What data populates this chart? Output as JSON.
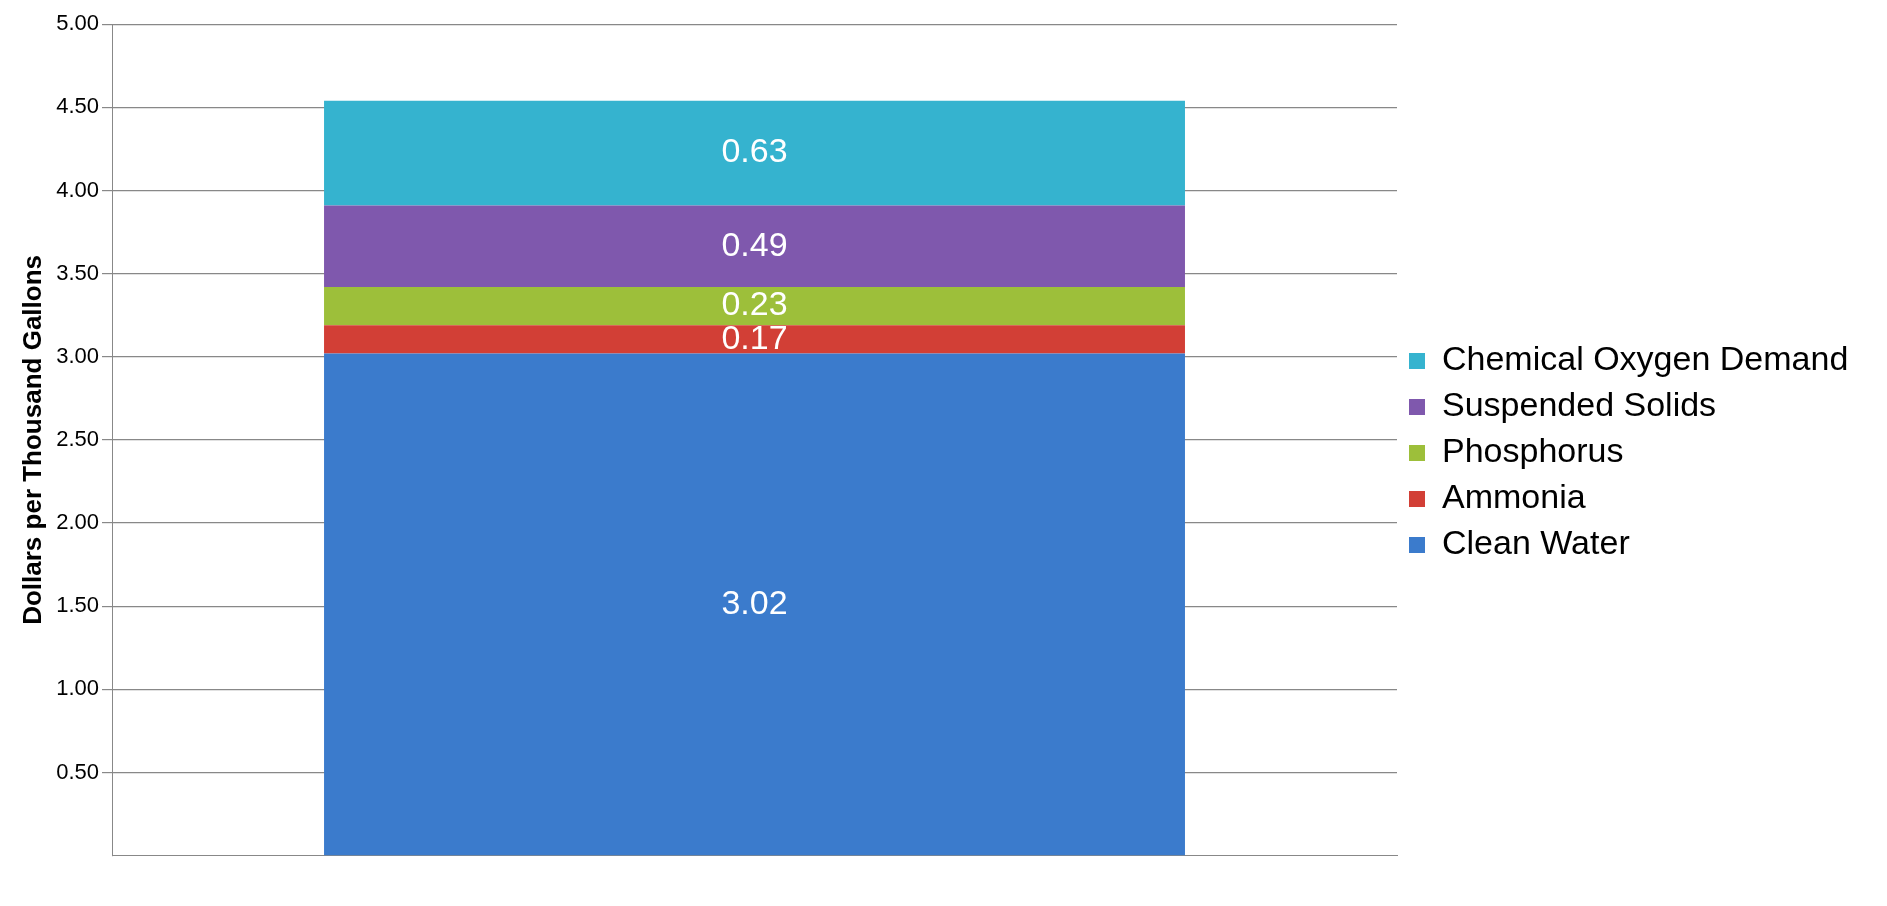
{
  "chart_data": {
    "type": "bar",
    "stacked": true,
    "ylabel": "Dollars per Thousand Gallons",
    "categories": [
      null
    ],
    "series": [
      {
        "name": "Clean Water",
        "color": "#3b7bcc",
        "values": [
          3.02
        ]
      },
      {
        "name": "Ammonia",
        "color": "#d23f36",
        "values": [
          0.17
        ]
      },
      {
        "name": "Phosphorus",
        "color": "#9dbf3a",
        "values": [
          0.23
        ]
      },
      {
        "name": "Suspended Solids",
        "color": "#7f58ad",
        "values": [
          0.49
        ]
      },
      {
        "name": "Chemical Oxygen Demand",
        "color": "#35b3cf",
        "values": [
          0.63
        ]
      }
    ],
    "ylim": [
      0,
      5
    ],
    "yticks": [
      {
        "value": 0.5,
        "label": "0.50"
      },
      {
        "value": 1,
        "label": "1.00"
      },
      {
        "value": 1.5,
        "label": "1.50"
      },
      {
        "value": 2,
        "label": "2.00"
      },
      {
        "value": 2.5,
        "label": "2.50"
      },
      {
        "value": 3,
        "label": "3.00"
      },
      {
        "value": 3.5,
        "label": "3.50"
      },
      {
        "value": 4,
        "label": "4.00"
      },
      {
        "value": 4.5,
        "label": "4.50"
      },
      {
        "value": 5,
        "label": "5.00"
      }
    ],
    "grid": "y",
    "legend": "right",
    "data_labels": true
  }
}
